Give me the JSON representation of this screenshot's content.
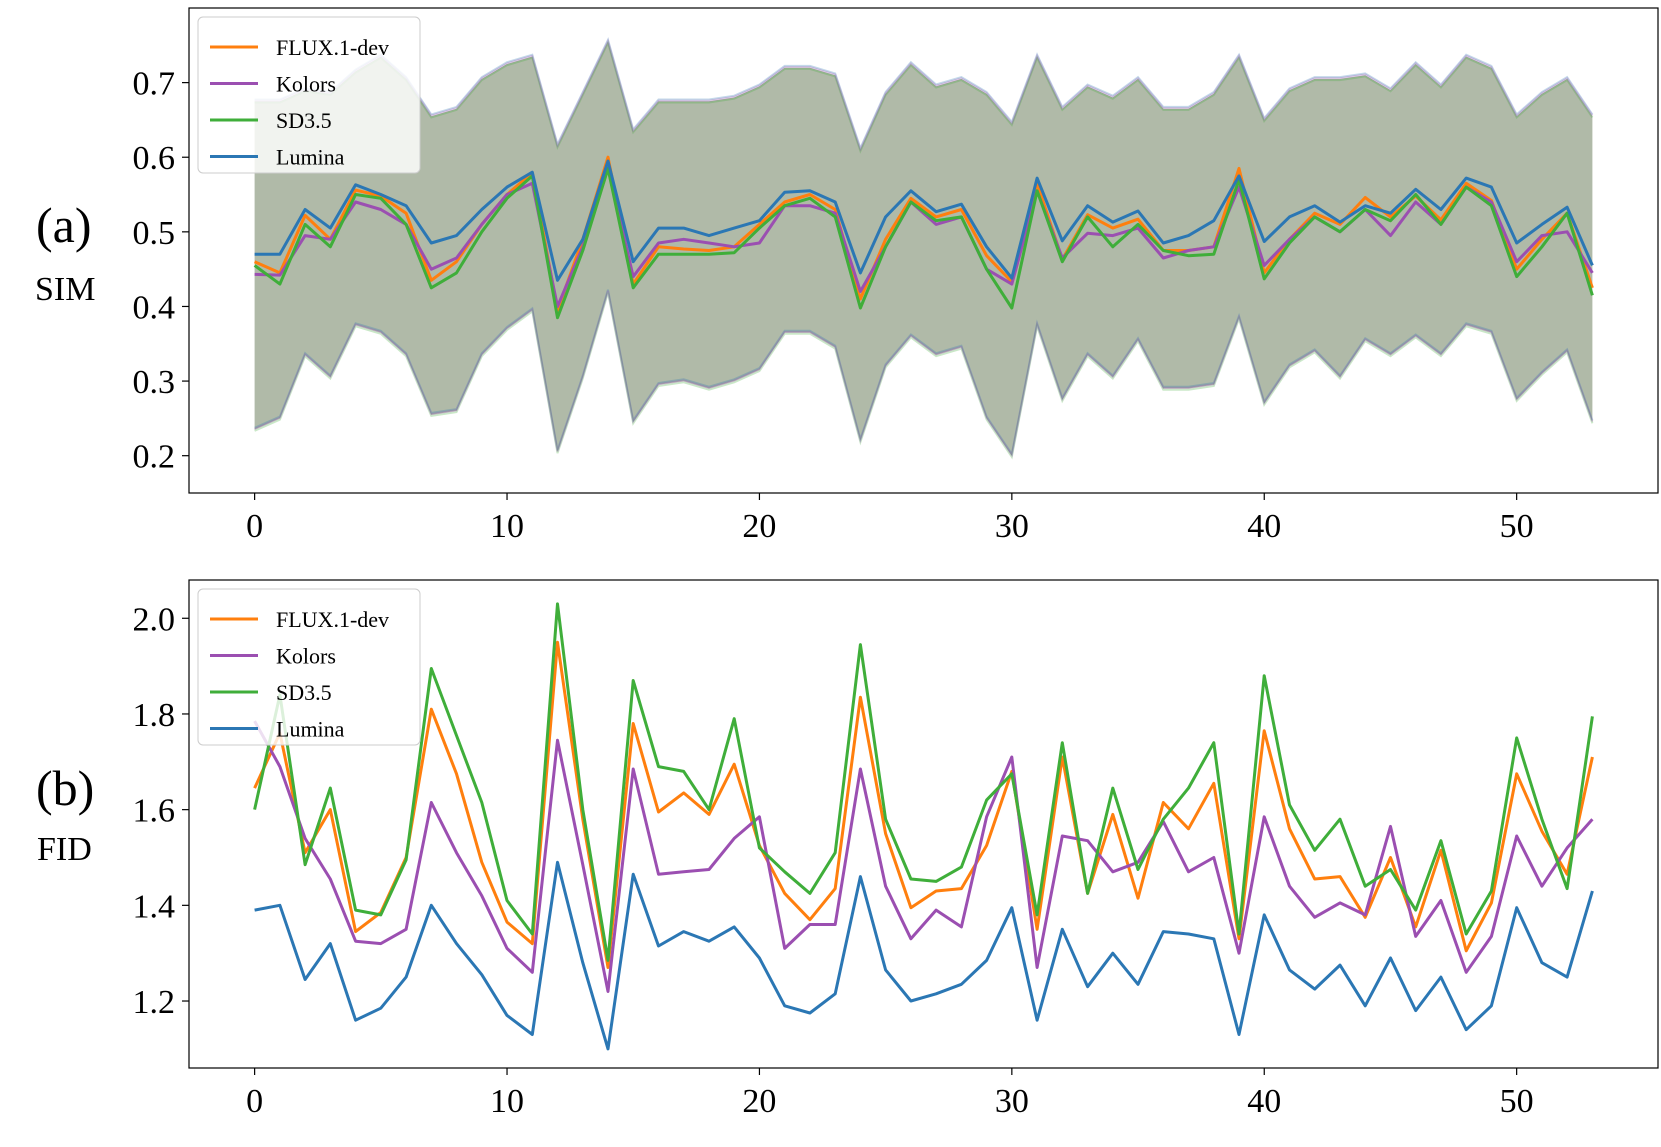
{
  "colors": {
    "FLUX.1-dev": "#ff7f0e",
    "Kolors": "#9b4fb1",
    "SD3.5": "#3fae3a",
    "Lumina": "#2b77b4"
  },
  "chart_data": [
    {
      "type": "line",
      "panel_label": "(a)",
      "ylabel": "SIM",
      "xlabel": "",
      "xlim": [
        -2.6,
        55.6
      ],
      "ylim": [
        0.15,
        0.8
      ],
      "xticks": [
        0,
        10,
        20,
        30,
        40,
        50
      ],
      "xtick_labels": [
        "0",
        "10",
        "20",
        "30",
        "40",
        "50"
      ],
      "yticks": [
        0.2,
        0.3,
        0.4,
        0.5,
        0.6,
        0.7
      ],
      "ytick_labels": [
        "0.2",
        "0.3",
        "0.4",
        "0.5",
        "0.6",
        "0.7"
      ],
      "legend": "top-left",
      "band": {
        "upper": [
          0.675,
          0.675,
          0.69,
          0.685,
          0.715,
          0.735,
          0.705,
          0.655,
          0.665,
          0.705,
          0.725,
          0.735,
          0.615,
          0.685,
          0.755,
          0.635,
          0.675,
          0.675,
          0.675,
          0.68,
          0.695,
          0.72,
          0.72,
          0.71,
          0.61,
          0.685,
          0.725,
          0.695,
          0.705,
          0.685,
          0.645,
          0.735,
          0.665,
          0.695,
          0.68,
          0.705,
          0.665,
          0.665,
          0.685,
          0.735,
          0.65,
          0.69,
          0.705,
          0.705,
          0.71,
          0.69,
          0.725,
          0.695,
          0.735,
          0.72,
          0.655,
          0.685,
          0.705,
          0.655
        ],
        "lower": [
          0.235,
          0.25,
          0.335,
          0.305,
          0.375,
          0.365,
          0.335,
          0.255,
          0.26,
          0.335,
          0.37,
          0.395,
          0.205,
          0.305,
          0.42,
          0.245,
          0.295,
          0.3,
          0.29,
          0.3,
          0.315,
          0.365,
          0.365,
          0.345,
          0.22,
          0.32,
          0.36,
          0.335,
          0.345,
          0.25,
          0.2,
          0.375,
          0.275,
          0.335,
          0.305,
          0.355,
          0.29,
          0.29,
          0.295,
          0.385,
          0.27,
          0.32,
          0.34,
          0.305,
          0.355,
          0.335,
          0.36,
          0.335,
          0.375,
          0.365,
          0.275,
          0.31,
          0.34,
          0.245
        ]
      },
      "series": [
        {
          "name": "FLUX.1-dev",
          "values": [
            0.46,
            0.445,
            0.522,
            0.49,
            0.556,
            0.548,
            0.525,
            0.435,
            0.46,
            0.51,
            0.55,
            0.579,
            0.395,
            0.49,
            0.6,
            0.43,
            0.48,
            0.477,
            0.475,
            0.48,
            0.51,
            0.54,
            0.55,
            0.53,
            0.41,
            0.49,
            0.545,
            0.52,
            0.53,
            0.468,
            0.433,
            0.565,
            0.463,
            0.523,
            0.505,
            0.517,
            0.475,
            0.475,
            0.48,
            0.585,
            0.445,
            0.49,
            0.525,
            0.51,
            0.546,
            0.52,
            0.548,
            0.516,
            0.565,
            0.542,
            0.45,
            0.49,
            0.525,
            0.425
          ]
        },
        {
          "name": "Kolors",
          "values": [
            0.443,
            0.442,
            0.495,
            0.49,
            0.54,
            0.53,
            0.51,
            0.45,
            0.465,
            0.51,
            0.55,
            0.565,
            0.4,
            0.48,
            0.585,
            0.44,
            0.485,
            0.49,
            0.485,
            0.48,
            0.485,
            0.535,
            0.535,
            0.525,
            0.42,
            0.48,
            0.54,
            0.51,
            0.52,
            0.45,
            0.43,
            0.555,
            0.465,
            0.498,
            0.495,
            0.505,
            0.465,
            0.475,
            0.48,
            0.56,
            0.455,
            0.49,
            0.52,
            0.5,
            0.53,
            0.495,
            0.54,
            0.51,
            0.56,
            0.54,
            0.46,
            0.495,
            0.5,
            0.445
          ]
        },
        {
          "name": "SD3.5",
          "values": [
            0.455,
            0.43,
            0.51,
            0.48,
            0.55,
            0.545,
            0.51,
            0.425,
            0.445,
            0.5,
            0.545,
            0.575,
            0.385,
            0.475,
            0.585,
            0.425,
            0.47,
            0.47,
            0.47,
            0.472,
            0.505,
            0.535,
            0.545,
            0.52,
            0.398,
            0.48,
            0.54,
            0.515,
            0.52,
            0.45,
            0.398,
            0.555,
            0.46,
            0.52,
            0.48,
            0.51,
            0.475,
            0.468,
            0.47,
            0.57,
            0.437,
            0.485,
            0.52,
            0.5,
            0.53,
            0.515,
            0.55,
            0.51,
            0.56,
            0.535,
            0.44,
            0.48,
            0.525,
            0.415
          ]
        },
        {
          "name": "Lumina",
          "values": [
            0.47,
            0.47,
            0.53,
            0.505,
            0.563,
            0.55,
            0.535,
            0.485,
            0.495,
            0.53,
            0.56,
            0.58,
            0.435,
            0.49,
            0.595,
            0.46,
            0.505,
            0.505,
            0.495,
            0.505,
            0.515,
            0.553,
            0.555,
            0.54,
            0.445,
            0.52,
            0.555,
            0.527,
            0.537,
            0.48,
            0.438,
            0.572,
            0.488,
            0.535,
            0.513,
            0.528,
            0.485,
            0.495,
            0.515,
            0.575,
            0.487,
            0.52,
            0.535,
            0.513,
            0.535,
            0.525,
            0.557,
            0.53,
            0.572,
            0.56,
            0.485,
            0.51,
            0.533,
            0.455
          ]
        }
      ]
    },
    {
      "type": "line",
      "panel_label": "(b)",
      "ylabel": "FID",
      "xlabel": "",
      "xlim": [
        -2.6,
        55.6
      ],
      "ylim": [
        1.06,
        2.08
      ],
      "xticks": [
        0,
        10,
        20,
        30,
        40,
        50
      ],
      "xtick_labels": [
        "0",
        "10",
        "20",
        "30",
        "40",
        "50"
      ],
      "yticks": [
        1.2,
        1.4,
        1.6,
        1.8,
        2.0
      ],
      "ytick_labels": [
        "1.2",
        "1.4",
        "1.6",
        "1.8",
        "2.0"
      ],
      "legend": "top-left",
      "series": [
        {
          "name": "FLUX.1-dev",
          "values": [
            1.645,
            1.76,
            1.51,
            1.6,
            1.345,
            1.385,
            1.5,
            1.81,
            1.675,
            1.49,
            1.365,
            1.32,
            1.95,
            1.58,
            1.27,
            1.78,
            1.595,
            1.635,
            1.59,
            1.695,
            1.525,
            1.425,
            1.37,
            1.435,
            1.835,
            1.55,
            1.395,
            1.43,
            1.435,
            1.525,
            1.68,
            1.35,
            1.71,
            1.425,
            1.59,
            1.415,
            1.615,
            1.56,
            1.655,
            1.33,
            1.765,
            1.56,
            1.455,
            1.46,
            1.375,
            1.5,
            1.355,
            1.515,
            1.305,
            1.405,
            1.675,
            1.555,
            1.465,
            1.71
          ]
        },
        {
          "name": "Kolors",
          "values": [
            1.785,
            1.69,
            1.54,
            1.455,
            1.325,
            1.32,
            1.35,
            1.615,
            1.51,
            1.42,
            1.31,
            1.26,
            1.745,
            1.485,
            1.22,
            1.685,
            1.465,
            1.47,
            1.475,
            1.54,
            1.585,
            1.31,
            1.36,
            1.36,
            1.685,
            1.44,
            1.33,
            1.39,
            1.355,
            1.585,
            1.71,
            1.27,
            1.545,
            1.535,
            1.47,
            1.49,
            1.575,
            1.47,
            1.5,
            1.3,
            1.585,
            1.44,
            1.375,
            1.405,
            1.38,
            1.565,
            1.335,
            1.41,
            1.26,
            1.335,
            1.545,
            1.44,
            1.52,
            1.58
          ]
        },
        {
          "name": "SD3.5",
          "values": [
            1.6,
            1.84,
            1.485,
            1.645,
            1.39,
            1.38,
            1.495,
            1.895,
            1.755,
            1.615,
            1.41,
            1.34,
            2.03,
            1.6,
            1.285,
            1.87,
            1.69,
            1.68,
            1.6,
            1.79,
            1.52,
            1.47,
            1.425,
            1.51,
            1.945,
            1.58,
            1.455,
            1.45,
            1.48,
            1.62,
            1.675,
            1.38,
            1.74,
            1.425,
            1.645,
            1.475,
            1.58,
            1.645,
            1.74,
            1.34,
            1.88,
            1.61,
            1.515,
            1.58,
            1.44,
            1.475,
            1.39,
            1.535,
            1.34,
            1.43,
            1.75,
            1.58,
            1.435,
            1.795
          ]
        },
        {
          "name": "Lumina",
          "values": [
            1.39,
            1.4,
            1.245,
            1.32,
            1.16,
            1.185,
            1.25,
            1.4,
            1.32,
            1.255,
            1.17,
            1.13,
            1.49,
            1.28,
            1.1,
            1.465,
            1.315,
            1.345,
            1.325,
            1.355,
            1.29,
            1.19,
            1.175,
            1.215,
            1.46,
            1.265,
            1.2,
            1.215,
            1.235,
            1.285,
            1.395,
            1.16,
            1.35,
            1.23,
            1.3,
            1.235,
            1.345,
            1.34,
            1.33,
            1.13,
            1.38,
            1.265,
            1.225,
            1.275,
            1.19,
            1.29,
            1.18,
            1.25,
            1.14,
            1.19,
            1.395,
            1.28,
            1.25,
            1.43
          ]
        }
      ]
    }
  ]
}
